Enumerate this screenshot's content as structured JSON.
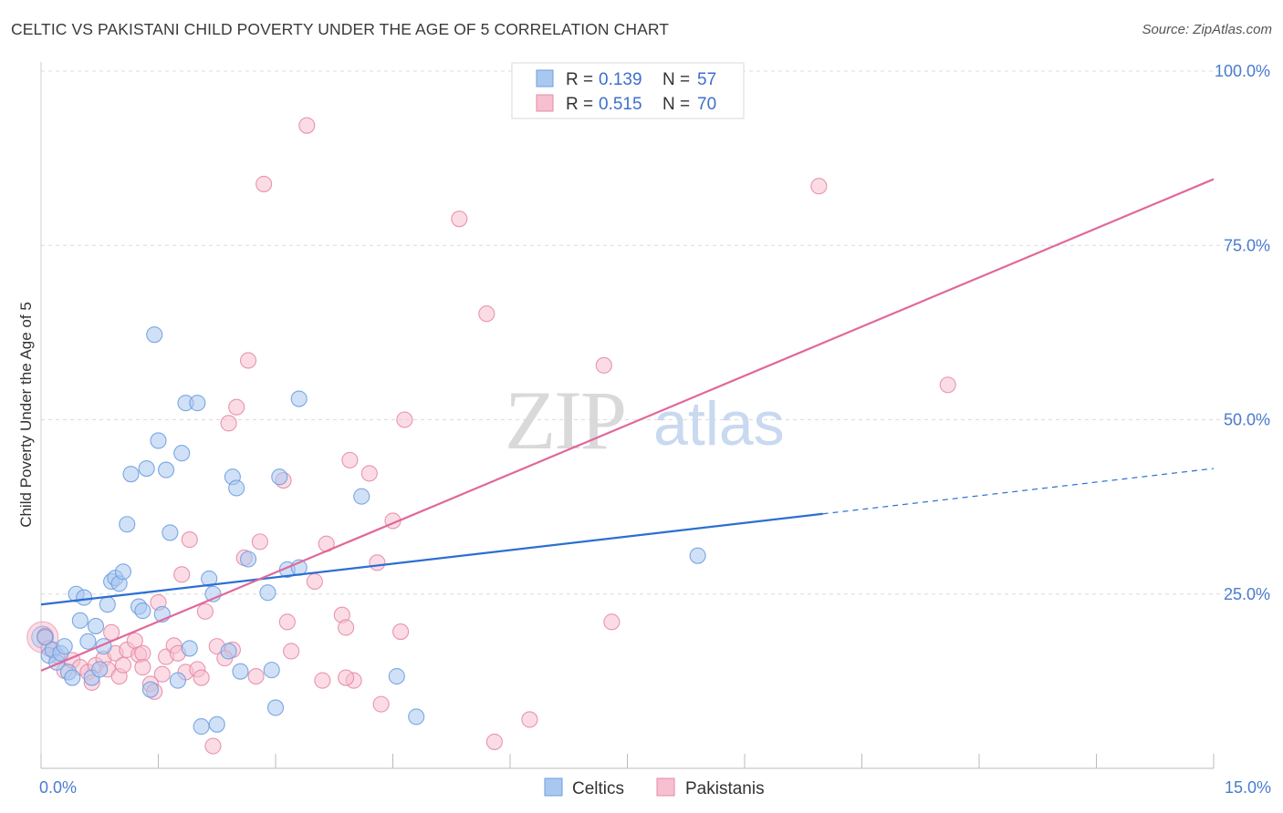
{
  "title": "CELTIC VS PAKISTANI CHILD POVERTY UNDER THE AGE OF 5 CORRELATION CHART",
  "source": "Source: ZipAtlas.com",
  "watermark": {
    "zip": "ZIP",
    "atlas": "atlas"
  },
  "colors": {
    "celtic_fill": "#a9c8f0",
    "celtic_stroke": "#6e9ee0",
    "celtic_line": "#2b6fd1",
    "pakistani_fill": "#f7bfd0",
    "pakistani_stroke": "#e58aa8",
    "pakistani_line": "#e0689a",
    "tick_text": "#4a7bd0",
    "grid": "#dcdcdc"
  },
  "legend": {
    "rows": [
      {
        "r_label": "R =",
        "r_value": "0.139",
        "n_label": "N =",
        "n_value": "57"
      },
      {
        "r_label": "R =",
        "r_value": "0.515",
        "n_label": "N =",
        "n_value": "70"
      }
    ]
  },
  "bottom_legend": [
    "Celtics",
    "Pakistanis"
  ],
  "chart_data": {
    "type": "scatter",
    "title": "CELTIC VS PAKISTANI CHILD POVERTY UNDER THE AGE OF 5 CORRELATION CHART",
    "xlabel": "",
    "ylabel": "Child Poverty Under the Age of 5",
    "xlim": [
      0,
      15
    ],
    "ylim": [
      0,
      100
    ],
    "x_tick_labels": [
      "0.0%",
      "15.0%"
    ],
    "y_ticks": [
      25,
      50,
      75,
      100
    ],
    "y_tick_labels": [
      "25.0%",
      "50.0%",
      "75.0%",
      "100.0%"
    ],
    "grid": true,
    "legend_position": "top-center",
    "series": [
      {
        "name": "Celtics",
        "r": 0.139,
        "n": 57,
        "trend": {
          "x0": 0,
          "y0": 23.5,
          "x1": 10,
          "y1": 36.5,
          "dashed_to_x": 15,
          "dashed_to_y": 43
        },
        "points": [
          [
            0.05,
            18.8
          ],
          [
            0.1,
            16.2
          ],
          [
            0.15,
            17.0
          ],
          [
            0.2,
            15.2
          ],
          [
            0.25,
            16.5
          ],
          [
            0.3,
            17.5
          ],
          [
            0.35,
            13.8
          ],
          [
            0.4,
            13.0
          ],
          [
            0.45,
            25.0
          ],
          [
            0.5,
            21.2
          ],
          [
            0.55,
            24.5
          ],
          [
            0.6,
            18.2
          ],
          [
            0.65,
            13.0
          ],
          [
            0.7,
            20.4
          ],
          [
            0.75,
            14.2
          ],
          [
            0.8,
            17.5
          ],
          [
            0.85,
            23.5
          ],
          [
            0.9,
            26.8
          ],
          [
            0.95,
            27.3
          ],
          [
            1.0,
            26.5
          ],
          [
            1.05,
            28.2
          ],
          [
            1.1,
            35.0
          ],
          [
            1.15,
            42.2
          ],
          [
            1.25,
            23.2
          ],
          [
            1.3,
            22.6
          ],
          [
            1.35,
            43.0
          ],
          [
            1.4,
            11.3
          ],
          [
            1.45,
            62.2
          ],
          [
            1.5,
            47.0
          ],
          [
            1.55,
            22.1
          ],
          [
            1.6,
            42.8
          ],
          [
            1.65,
            33.8
          ],
          [
            1.75,
            12.6
          ],
          [
            1.8,
            45.2
          ],
          [
            1.85,
            52.4
          ],
          [
            1.9,
            17.2
          ],
          [
            2.0,
            52.4
          ],
          [
            2.05,
            6.0
          ],
          [
            2.15,
            27.2
          ],
          [
            2.2,
            25.0
          ],
          [
            2.25,
            6.3
          ],
          [
            2.4,
            16.8
          ],
          [
            2.45,
            41.8
          ],
          [
            2.5,
            40.2
          ],
          [
            2.55,
            13.9
          ],
          [
            2.65,
            30.0
          ],
          [
            2.9,
            25.2
          ],
          [
            3.0,
            8.7
          ],
          [
            3.05,
            41.8
          ],
          [
            3.15,
            28.5
          ],
          [
            3.3,
            28.8
          ],
          [
            3.3,
            53.0
          ],
          [
            4.1,
            39.0
          ],
          [
            4.55,
            13.2
          ],
          [
            4.8,
            7.4
          ],
          [
            8.4,
            30.5
          ],
          [
            2.95,
            14.1
          ]
        ]
      },
      {
        "name": "Pakistanis",
        "r": 0.515,
        "n": 70,
        "trend": {
          "x0": 0,
          "y0": 14.0,
          "x1": 15,
          "y1": 84.5
        },
        "points": [
          [
            0.05,
            19.0
          ],
          [
            0.1,
            17.2
          ],
          [
            0.2,
            16.2
          ],
          [
            0.3,
            14.0
          ],
          [
            0.4,
            15.5
          ],
          [
            0.5,
            14.5
          ],
          [
            0.6,
            13.8
          ],
          [
            0.65,
            12.3
          ],
          [
            0.7,
            14.8
          ],
          [
            0.8,
            15.7
          ],
          [
            0.85,
            14.2
          ],
          [
            0.9,
            19.5
          ],
          [
            0.95,
            16.5
          ],
          [
            1.0,
            13.2
          ],
          [
            1.05,
            14.8
          ],
          [
            1.1,
            17.0
          ],
          [
            1.2,
            18.3
          ],
          [
            1.25,
            16.3
          ],
          [
            1.3,
            16.5
          ],
          [
            1.4,
            12.1
          ],
          [
            1.45,
            11.0
          ],
          [
            1.5,
            23.8
          ],
          [
            1.55,
            13.5
          ],
          [
            1.6,
            16.0
          ],
          [
            1.7,
            17.6
          ],
          [
            1.75,
            16.5
          ],
          [
            1.8,
            27.8
          ],
          [
            1.85,
            13.8
          ],
          [
            1.9,
            32.8
          ],
          [
            2.0,
            14.2
          ],
          [
            2.05,
            13.0
          ],
          [
            2.1,
            22.5
          ],
          [
            2.2,
            3.2
          ],
          [
            2.25,
            17.5
          ],
          [
            2.4,
            49.5
          ],
          [
            2.45,
            17.0
          ],
          [
            2.5,
            51.8
          ],
          [
            2.6,
            30.2
          ],
          [
            2.65,
            58.5
          ],
          [
            2.75,
            13.2
          ],
          [
            2.8,
            32.5
          ],
          [
            2.85,
            83.8
          ],
          [
            3.1,
            41.3
          ],
          [
            3.15,
            21.0
          ],
          [
            3.2,
            16.8
          ],
          [
            3.4,
            92.2
          ],
          [
            3.5,
            26.8
          ],
          [
            3.6,
            12.6
          ],
          [
            3.65,
            32.2
          ],
          [
            3.85,
            22.0
          ],
          [
            3.9,
            20.2
          ],
          [
            3.95,
            44.2
          ],
          [
            4.0,
            12.6
          ],
          [
            4.2,
            42.3
          ],
          [
            4.35,
            9.2
          ],
          [
            4.5,
            35.5
          ],
          [
            4.6,
            19.6
          ],
          [
            4.65,
            50.0
          ],
          [
            5.35,
            78.8
          ],
          [
            5.7,
            65.2
          ],
          [
            5.8,
            3.8
          ],
          [
            6.25,
            7.0
          ],
          [
            7.2,
            57.8
          ],
          [
            7.3,
            21.0
          ],
          [
            9.95,
            83.5
          ],
          [
            11.6,
            55.0
          ],
          [
            1.3,
            14.5
          ],
          [
            2.35,
            15.8
          ],
          [
            3.9,
            13.0
          ],
          [
            4.3,
            29.5
          ]
        ]
      }
    ]
  }
}
